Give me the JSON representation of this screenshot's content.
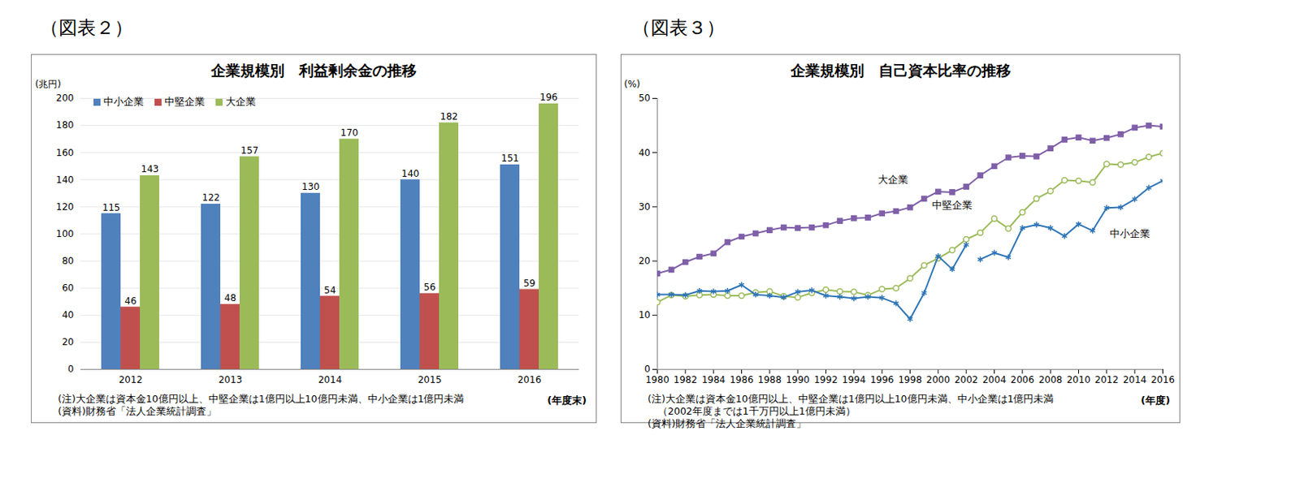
{
  "chart_data": [
    {
      "type": "bar",
      "figure_label": "（図表２）",
      "title": "企業規模別　利益剰余金の推移",
      "ylabel": "(兆円)",
      "xlabel": "(年度末)",
      "notes": [
        "(注)大企業は資本金10億円以上、中堅企業は1億円以上10億円未満、中小企業は1億円未満",
        "(資料)財務省「法人企業統計調査」"
      ],
      "categories": [
        "2012",
        "2013",
        "2014",
        "2015",
        "2016"
      ],
      "series": [
        {
          "name": "中小企業",
          "color": "#4f81bd",
          "values": [
            115,
            122,
            130,
            140,
            151
          ]
        },
        {
          "name": "中堅企業",
          "color": "#c0504d",
          "values": [
            46,
            48,
            54,
            56,
            59
          ]
        },
        {
          "name": "大企業",
          "color": "#9bbb59",
          "values": [
            143,
            157,
            170,
            182,
            196
          ]
        }
      ],
      "ylim": [
        0,
        200
      ],
      "yticks": [
        0,
        20,
        40,
        60,
        80,
        100,
        120,
        140,
        160,
        180,
        200
      ],
      "grid": true,
      "data_labels": true,
      "legend": "top-left"
    },
    {
      "type": "line",
      "figure_label": "（図表３）",
      "title": "企業規模別　自己資本比率の推移",
      "ylabel": "(%)",
      "xlabel": "(年度)",
      "notes": [
        "(注)大企業は資本金10億円以上、中堅企業は1億円以上10億円未満、中小企業は1億円未満",
        "　（2002年度までは1千万円以上1億円未満）",
        "(資料)財務省「法人企業統計調査」"
      ],
      "x": [
        1980,
        1981,
        1982,
        1983,
        1984,
        1985,
        1986,
        1987,
        1988,
        1989,
        1990,
        1991,
        1992,
        1993,
        1994,
        1995,
        1996,
        1997,
        1998,
        1999,
        2000,
        2001,
        2002,
        2003,
        2004,
        2005,
        2006,
        2007,
        2008,
        2009,
        2010,
        2011,
        2012,
        2013,
        2014,
        2015,
        2016
      ],
      "series": [
        {
          "name": "大企業",
          "color": "#7f5fa8",
          "marker": "square",
          "values": [
            17.7,
            18.4,
            19.8,
            20.8,
            21.4,
            23.5,
            24.5,
            25.1,
            25.7,
            26.2,
            26.1,
            26.2,
            26.6,
            27.4,
            27.9,
            28.0,
            28.8,
            29.2,
            29.9,
            31.5,
            32.8,
            32.7,
            33.7,
            35.8,
            37.5,
            39.1,
            39.4,
            39.3,
            40.8,
            42.4,
            42.8,
            42.2,
            42.7,
            43.4,
            44.6,
            45.0,
            44.8
          ]
        },
        {
          "name": "中堅企業",
          "color": "#9bbb59",
          "marker": "circle",
          "values": [
            12.4,
            13.7,
            13.5,
            13.7,
            13.8,
            13.6,
            13.6,
            14.2,
            14.4,
            13.5,
            13.3,
            14.1,
            14.7,
            14.4,
            14.3,
            13.7,
            14.8,
            15.0,
            16.8,
            19.2,
            20.5,
            22.0,
            24.0,
            25.2,
            27.8,
            26.0,
            29.0,
            31.5,
            32.9,
            34.9,
            34.8,
            34.5,
            37.9,
            37.8,
            38.2,
            39.2,
            39.9
          ]
        },
        {
          "name": "中小企業",
          "color": "#2e75b6",
          "marker": "asterisk",
          "values": [
            13.8,
            13.8,
            13.7,
            14.5,
            14.4,
            14.5,
            15.6,
            13.8,
            13.6,
            13.3,
            14.3,
            14.6,
            13.6,
            13.4,
            13.1,
            13.4,
            13.2,
            12.2,
            9.3,
            14.1,
            20.9,
            18.5,
            23.0,
            null,
            null,
            null,
            null,
            null,
            null,
            null,
            null,
            null,
            null,
            null,
            null,
            null,
            null
          ]
        },
        {
          "name": "中小企業",
          "color": "#2e75b6",
          "marker": "asterisk",
          "values": [
            null,
            null,
            null,
            null,
            null,
            null,
            null,
            null,
            null,
            null,
            null,
            null,
            null,
            null,
            null,
            null,
            null,
            null,
            null,
            null,
            null,
            null,
            null,
            20.3,
            21.5,
            20.7,
            26.1,
            26.7,
            26.1,
            24.6,
            26.8,
            25.6,
            29.8,
            29.9,
            31.4,
            33.5,
            34.8
          ]
        }
      ],
      "xlim": [
        1980,
        2016
      ],
      "xticks": [
        1980,
        1982,
        1984,
        1986,
        1988,
        1990,
        1992,
        1994,
        1996,
        1998,
        2000,
        2002,
        2004,
        2006,
        2008,
        2010,
        2012,
        2014,
        2016
      ],
      "ylim": [
        0,
        50
      ],
      "yticks": [
        0,
        10,
        20,
        30,
        40,
        50
      ],
      "grid": false
    }
  ]
}
